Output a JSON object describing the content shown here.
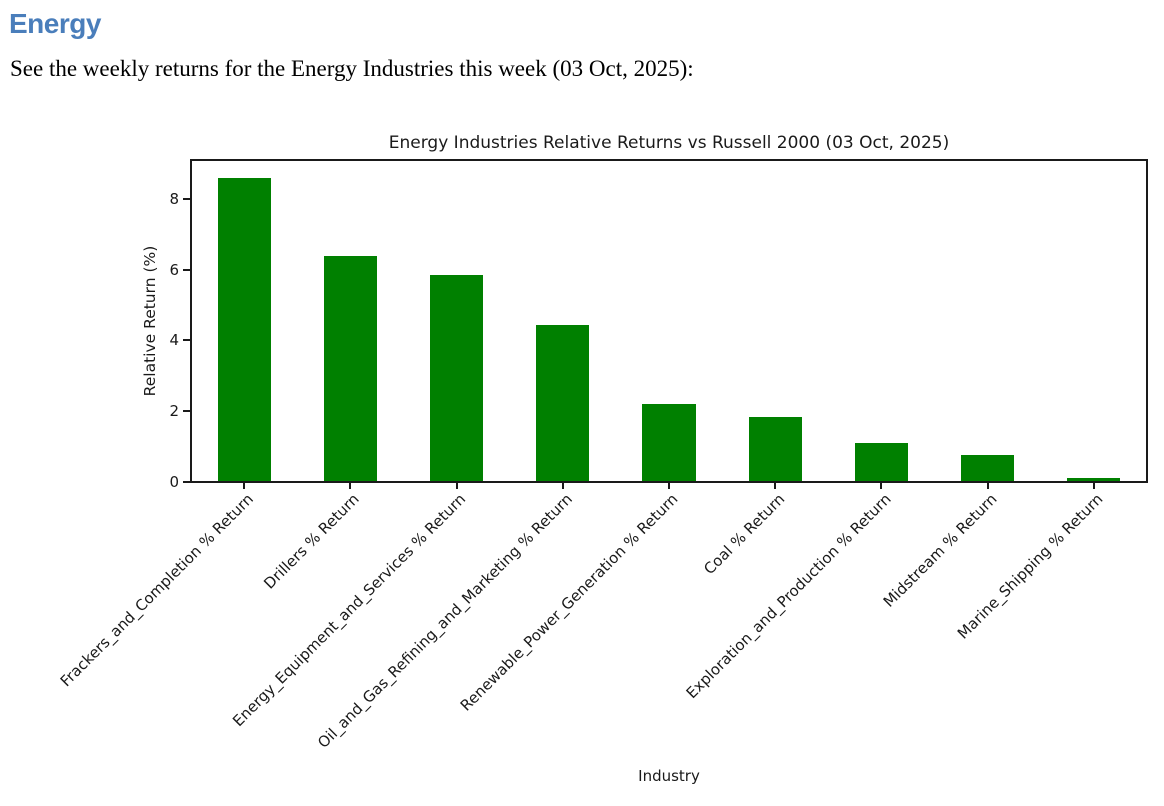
{
  "page": {
    "heading": "Energy",
    "subtitle": "See the weekly returns for the Energy Industries this week (03 Oct, 2025):"
  },
  "colors": {
    "heading_blue": "#4a7ebb",
    "bar_green": "#008000",
    "axis_black": "#1a1a1a"
  },
  "chart_data": {
    "type": "bar",
    "title": "Energy Industries Relative Returns vs Russell 2000 (03 Oct, 2025)",
    "xlabel": "Industry",
    "ylabel": "Relative Return (%)",
    "categories": [
      "Frackers_and_Completion % Return",
      "Drillers % Return",
      "Energy_Equipment_and_Services % Return",
      "Oil_and_Gas_Refining_and_Marketing % Return",
      "Renewable_Power_Generation % Return",
      "Coal % Return",
      "Exploration_and_Production % Return",
      "Midstream % Return",
      "Marine_Shipping % Return"
    ],
    "values": [
      8.6,
      6.4,
      5.85,
      4.45,
      2.2,
      1.85,
      1.1,
      0.75,
      0.1
    ],
    "ylim": [
      0,
      9.1
    ],
    "yticks": [
      0,
      2,
      4,
      6,
      8
    ],
    "bar_color": "#008000",
    "bar_width_fraction": 0.5,
    "xtick_rotation": 45,
    "grid": false,
    "legend": false
  }
}
